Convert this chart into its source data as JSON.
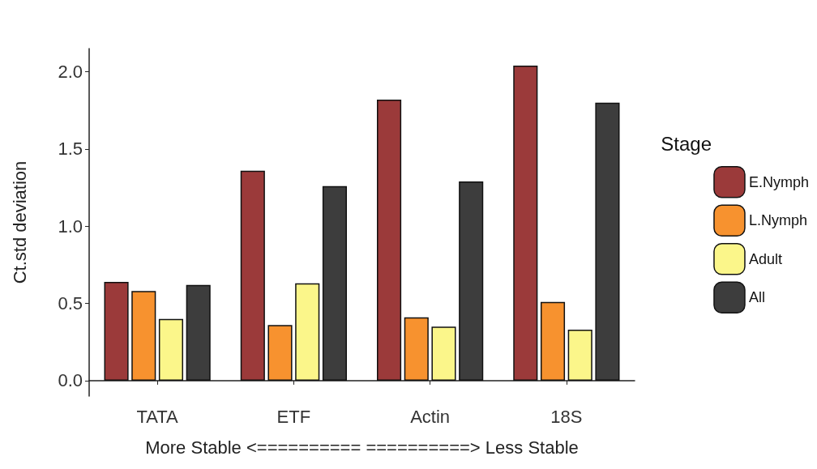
{
  "chart_data": {
    "type": "bar",
    "xlabel": "More Stable <========== ==========> Less Stable",
    "ylabel": "Ct.std deviation",
    "legend_title": "Stage",
    "categories": [
      "TATA",
      "ETF",
      "Actin",
      "18S"
    ],
    "series": [
      {
        "name": "E.Nymph",
        "color": "#9b3a3a",
        "values": [
          0.64,
          1.36,
          1.82,
          2.04
        ]
      },
      {
        "name": "L.Nymph",
        "color": "#f7922f",
        "values": [
          0.58,
          0.36,
          0.41,
          0.51
        ]
      },
      {
        "name": "Adult",
        "color": "#fbf68a",
        "values": [
          0.4,
          0.63,
          0.35,
          0.33
        ]
      },
      {
        "name": "All",
        "color": "#3d3d3d",
        "values": [
          0.62,
          1.26,
          1.29,
          1.8
        ]
      }
    ],
    "ylim": [
      -0.1,
      2.15
    ],
    "yticks": [
      {
        "value": 0,
        "label": "0.0"
      },
      {
        "value": 0.5,
        "label": "0.5"
      },
      {
        "value": 1,
        "label": "1.0"
      },
      {
        "value": 1.5,
        "label": "1.5"
      },
      {
        "value": 2,
        "label": "2.0"
      }
    ],
    "grid": false,
    "legend": "right"
  }
}
